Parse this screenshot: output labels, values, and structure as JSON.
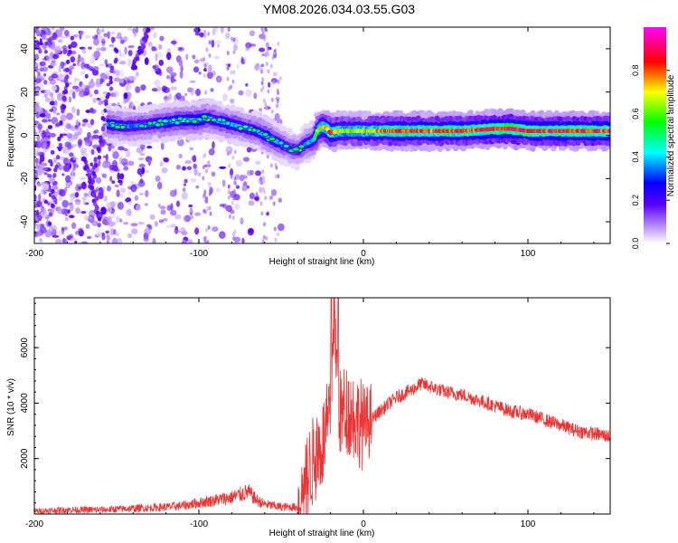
{
  "title": "YM08.2026.034.03.55.G03",
  "chart_data": [
    {
      "type": "heatmap",
      "title": "YM08.2026.034.03.55.G03",
      "xlabel": "Height of straight line (km)",
      "ylabel": "Frequency (Hz)",
      "xlim": [
        -200,
        150
      ],
      "ylim": [
        -50,
        50
      ],
      "x_ticks": [
        "-200",
        "-100",
        "0",
        "100"
      ],
      "y_ticks": [
        "-40",
        "-20",
        "0",
        "20",
        "40"
      ],
      "colorbar": {
        "label": "Normalized spectral amplitude",
        "range": [
          0,
          1
        ],
        "ticks": [
          "0.0",
          "0.2",
          "0.4",
          "0.6",
          "0.8"
        ],
        "colormap": [
          "#ffffff",
          "#7a00ff",
          "#0000ff",
          "#00ffff",
          "#00ff00",
          "#ffff00",
          "#ff0000",
          "#ff00ff"
        ]
      },
      "ridge": {
        "x": [
          -155,
          -145,
          -130,
          -120,
          -110,
          -100,
          -95,
          -90,
          -85,
          -80,
          -75,
          -70,
          -65,
          -60,
          -55,
          -50,
          -45,
          -40,
          -35,
          -30,
          -28,
          -25,
          -22,
          -20,
          -15,
          -10,
          -5,
          0,
          10,
          20,
          40,
          60,
          80,
          90,
          100,
          120,
          150
        ],
        "y": [
          5,
          4,
          5,
          6,
          7,
          7,
          8,
          7,
          6,
          5,
          4,
          3,
          2,
          0,
          -2,
          -4,
          -6,
          -7,
          -4,
          -2,
          2,
          4,
          3,
          1,
          2,
          2,
          2,
          2,
          2,
          2,
          2,
          2,
          3,
          3,
          2,
          2,
          2
        ],
        "amplitude": [
          0.4,
          0.35,
          0.35,
          0.4,
          0.42,
          0.45,
          0.4,
          0.38,
          0.4,
          0.4,
          0.38,
          0.35,
          0.38,
          0.4,
          0.4,
          0.35,
          0.3,
          0.3,
          0.35,
          0.4,
          0.6,
          0.7,
          0.75,
          0.8,
          0.7,
          0.65,
          0.7,
          0.7,
          0.75,
          0.8,
          0.8,
          0.8,
          0.85,
          0.9,
          0.85,
          0.85,
          0.85
        ]
      }
    },
    {
      "type": "line",
      "xlabel": "Height of straight line (km)",
      "ylabel": "SNR (10 * v/v)",
      "xlim": [
        -200,
        150
      ],
      "ylim": [
        0,
        7800
      ],
      "x_ticks": [
        "-200",
        "-100",
        "0",
        "100"
      ],
      "y_ticks": [
        "2000",
        "4000",
        "6000"
      ],
      "color": "#ee3333",
      "series": [
        {
          "x": [
            -200,
            -180,
            -160,
            -140,
            -120,
            -110,
            -100,
            -90,
            -80,
            -70,
            -65,
            -60,
            -50,
            -40,
            -35,
            -30,
            -25,
            -20,
            -18,
            -16,
            -14,
            -12,
            -10,
            -5,
            0,
            5,
            10,
            20,
            30,
            35,
            40,
            50,
            60,
            70,
            80,
            90,
            100,
            110,
            120,
            130,
            140,
            150
          ],
          "y": [
            100,
            150,
            150,
            200,
            250,
            300,
            400,
            500,
            600,
            800,
            500,
            350,
            250,
            250,
            1200,
            2000,
            2500,
            3500,
            7600,
            5000,
            3500,
            3700,
            3800,
            3500,
            3200,
            3400,
            3700,
            4200,
            4500,
            4700,
            4600,
            4400,
            4300,
            4100,
            3900,
            3700,
            3600,
            3400,
            3200,
            3000,
            2900,
            2800
          ]
        }
      ]
    }
  ]
}
